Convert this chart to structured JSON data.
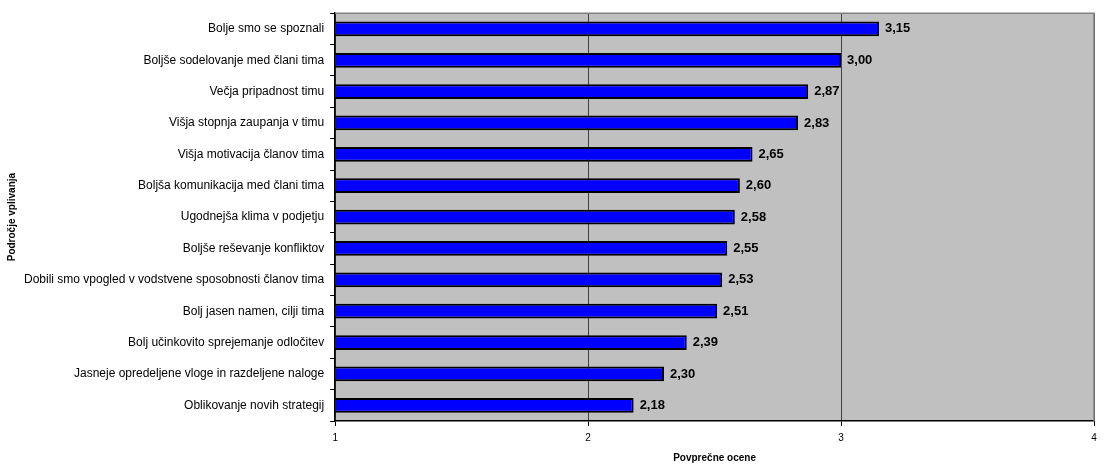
{
  "chart_data": {
    "type": "bar",
    "orientation": "horizontal",
    "xlabel": "Povprečne ocene",
    "ylabel": "Področje vplivanja",
    "categories": [
      "Bolje smo se spoznali",
      "Boljše sodelovanje med člani tima",
      "Večja pripadnost timu",
      "Višja stopnja zaupanja v timu",
      "Višja motivacija članov tima",
      "Boljša komunikacija med člani tima",
      "Ugodnejša klima v podjetju",
      "Boljše reševanje konfliktov",
      "Dobili smo vpogled v vodstvene sposobnosti članov tima",
      "Bolj jasen namen, cilji tima",
      "Bolj učinkovito sprejemanje odločitev",
      "Jasneje opredeljene vloge in razdeljene naloge",
      "Oblikovanje novih strategij"
    ],
    "values": [
      3.15,
      3.0,
      2.87,
      2.83,
      2.65,
      2.6,
      2.58,
      2.55,
      2.53,
      2.51,
      2.39,
      2.3,
      2.18
    ],
    "value_labels": [
      "3,15",
      "3,00",
      "2,87",
      "2,83",
      "2,65",
      "2,60",
      "2,58",
      "2,55",
      "2,53",
      "2,51",
      "2,39",
      "2,30",
      "2,18"
    ],
    "color": "#0000ff",
    "xlim": [
      1,
      4
    ],
    "xticks": [
      1,
      2,
      3,
      4
    ],
    "grid": "x"
  }
}
